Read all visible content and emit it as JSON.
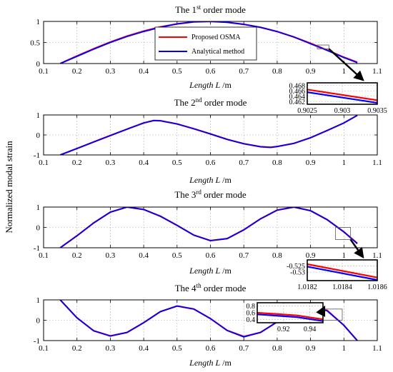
{
  "figure": {
    "ylabel": "Normalized modal strain"
  },
  "legend": {
    "items": [
      {
        "name": "Proposed OSMA",
        "color": "#ff0000"
      },
      {
        "name": "Analytical method",
        "color": "#0000ff"
      }
    ]
  },
  "chart_data": [
    {
      "type": "line",
      "title_main": "The 1",
      "title_sup": "st",
      "title_rest": " order mode",
      "xlabel_italic": "Length L",
      "xlabel_unit": " /m",
      "xlim": [
        0.1,
        1.1
      ],
      "ylim": [
        0,
        1
      ],
      "xticks": [
        "0.1",
        "0.2",
        "0.3",
        "0.4",
        "0.5",
        "0.6",
        "0.7",
        "0.8",
        "0.9",
        "1",
        "1.1"
      ],
      "yticks": [
        "0",
        "0.5",
        "1"
      ],
      "series": [
        {
          "name": "Proposed OSMA",
          "color": "#ff0000",
          "x": [
            0.15,
            0.2,
            0.25,
            0.3,
            0.35,
            0.4,
            0.45,
            0.5,
            0.55,
            0.6,
            0.65,
            0.7,
            0.75,
            0.8,
            0.85,
            0.9,
            0.95,
            1.0,
            1.04
          ],
          "y": [
            0.0,
            0.18,
            0.35,
            0.51,
            0.65,
            0.77,
            0.87,
            0.94,
            0.99,
            1.0,
            0.98,
            0.93,
            0.86,
            0.76,
            0.63,
            0.48,
            0.32,
            0.15,
            0.03
          ]
        },
        {
          "name": "Analytical method",
          "color": "#0000ff",
          "x": [
            0.15,
            0.2,
            0.25,
            0.3,
            0.35,
            0.4,
            0.45,
            0.5,
            0.55,
            0.6,
            0.65,
            0.7,
            0.75,
            0.8,
            0.85,
            0.9,
            0.95,
            1.0,
            1.04
          ],
          "y": [
            0.0,
            0.17,
            0.34,
            0.5,
            0.64,
            0.76,
            0.86,
            0.94,
            0.99,
            1.0,
            0.98,
            0.93,
            0.86,
            0.76,
            0.63,
            0.47,
            0.31,
            0.14,
            0.02
          ]
        }
      ],
      "zoom_box": {
        "xlim": [
          0.92,
          0.955
        ],
        "ylim": [
          0.35,
          0.44
        ]
      },
      "inset": {
        "xlim": [
          0.9025,
          0.9035
        ],
        "ylim": [
          0.461,
          0.469
        ],
        "xticks": [
          "0.9025",
          "0.903",
          "0.9035"
        ],
        "yticks": [
          "0.468",
          "0.466",
          "0.464",
          "0.462"
        ],
        "series": [
          {
            "color": "#ff0000",
            "x": [
              0.9025,
              0.9035
            ],
            "y": [
              0.4665,
              0.4625
            ]
          },
          {
            "color": "#0000ff",
            "x": [
              0.9025,
              0.9035
            ],
            "y": [
              0.4655,
              0.4615
            ]
          }
        ]
      }
    },
    {
      "type": "line",
      "title_main": "The 2",
      "title_sup": "nd",
      "title_rest": " order mode",
      "xlabel_italic": "Length L",
      "xlabel_unit": " /m",
      "xlim": [
        0.1,
        1.1
      ],
      "ylim": [
        -1,
        1
      ],
      "xticks": [
        "0.1",
        "0.2",
        "0.3",
        "0.4",
        "0.5",
        "0.6",
        "0.7",
        "0.8",
        "0.9",
        "1",
        "1.1"
      ],
      "yticks": [
        "-1",
        "0",
        "1"
      ],
      "series": [
        {
          "name": "Proposed OSMA",
          "color": "#ff0000",
          "x": [
            0.15,
            0.2,
            0.25,
            0.3,
            0.35,
            0.4,
            0.43,
            0.45,
            0.5,
            0.55,
            0.6,
            0.65,
            0.7,
            0.75,
            0.78,
            0.8,
            0.85,
            0.9,
            0.95,
            1.0,
            1.04
          ],
          "y": [
            -1.0,
            -0.68,
            -0.35,
            -0.03,
            0.29,
            0.6,
            0.72,
            0.71,
            0.55,
            0.31,
            0.05,
            -0.22,
            -0.44,
            -0.59,
            -0.62,
            -0.58,
            -0.42,
            -0.14,
            0.22,
            0.6,
            0.98
          ]
        },
        {
          "name": "Analytical method",
          "color": "#0000ff",
          "x": [
            0.15,
            0.2,
            0.25,
            0.3,
            0.35,
            0.4,
            0.43,
            0.45,
            0.5,
            0.55,
            0.6,
            0.65,
            0.7,
            0.75,
            0.78,
            0.8,
            0.85,
            0.9,
            0.95,
            1.0,
            1.04
          ],
          "y": [
            -1.0,
            -0.68,
            -0.35,
            -0.03,
            0.29,
            0.6,
            0.72,
            0.71,
            0.55,
            0.31,
            0.05,
            -0.22,
            -0.44,
            -0.59,
            -0.62,
            -0.58,
            -0.42,
            -0.14,
            0.22,
            0.6,
            0.98
          ]
        }
      ]
    },
    {
      "type": "line",
      "title_main": "The 3",
      "title_sup": "rd",
      "title_rest": " order mode",
      "xlabel_italic": "Length L",
      "xlabel_unit": " /m",
      "xlim": [
        0.1,
        1.1
      ],
      "ylim": [
        -1,
        1
      ],
      "xticks": [
        "0.1",
        "0.2",
        "0.3",
        "0.4",
        "0.5",
        "0.6",
        "0.7",
        "0.8",
        "0.9",
        "1",
        "1.1"
      ],
      "yticks": [
        "-1",
        "0",
        "1"
      ],
      "series": [
        {
          "name": "Proposed OSMA",
          "color": "#ff0000",
          "x": [
            0.15,
            0.2,
            0.25,
            0.3,
            0.35,
            0.4,
            0.45,
            0.5,
            0.55,
            0.6,
            0.65,
            0.7,
            0.75,
            0.8,
            0.85,
            0.9,
            0.95,
            1.0,
            1.04
          ],
          "y": [
            -1.0,
            -0.41,
            0.22,
            0.75,
            1.0,
            0.88,
            0.55,
            0.1,
            -0.38,
            -0.65,
            -0.55,
            -0.12,
            0.42,
            0.85,
            1.0,
            0.82,
            0.38,
            -0.22,
            -0.78
          ]
        },
        {
          "name": "Analytical method",
          "color": "#0000ff",
          "x": [
            0.15,
            0.2,
            0.25,
            0.3,
            0.35,
            0.4,
            0.45,
            0.5,
            0.55,
            0.6,
            0.65,
            0.7,
            0.75,
            0.8,
            0.85,
            0.9,
            0.95,
            1.0,
            1.04
          ],
          "y": [
            -1.0,
            -0.41,
            0.22,
            0.75,
            1.0,
            0.88,
            0.55,
            0.1,
            -0.38,
            -0.65,
            -0.55,
            -0.12,
            0.42,
            0.85,
            1.0,
            0.82,
            0.38,
            -0.22,
            -0.8
          ]
        }
      ],
      "zoom_box": {
        "xlim": [
          0.975,
          1.02
        ],
        "ylim": [
          -0.6,
          0
        ]
      },
      "inset": {
        "xlim": [
          1.0182,
          1.0186
        ],
        "ylim": [
          -0.537,
          -0.52
        ],
        "xticks": [
          "1.0182",
          "1.0184",
          "1.0186"
        ],
        "yticks": [
          "-0.525",
          "-0.53"
        ],
        "series": [
          {
            "color": "#ff0000",
            "x": [
              1.0182,
              1.0186
            ],
            "y": [
              -0.5235,
              -0.5345
            ]
          },
          {
            "color": "#0000ff",
            "x": [
              1.0182,
              1.0186
            ],
            "y": [
              -0.5255,
              -0.5365
            ]
          }
        ]
      }
    },
    {
      "type": "line",
      "title_main": "The 4",
      "title_sup": "th",
      "title_rest": " order mode",
      "xlabel_italic": "Length L",
      "xlabel_unit": " /m",
      "xlim": [
        0.1,
        1.1
      ],
      "ylim": [
        -1,
        1
      ],
      "xticks": [
        "0.1",
        "0.2",
        "0.3",
        "0.4",
        "0.5",
        "0.6",
        "0.7",
        "0.8",
        "0.9",
        "1",
        "1.1"
      ],
      "yticks": [
        "-1",
        "0",
        "1"
      ],
      "series": [
        {
          "name": "Proposed OSMA",
          "color": "#ff0000",
          "x": [
            0.15,
            0.2,
            0.25,
            0.3,
            0.35,
            0.4,
            0.45,
            0.5,
            0.55,
            0.6,
            0.65,
            0.7,
            0.75,
            0.8,
            0.85,
            0.9,
            0.95,
            1.0,
            1.04
          ],
          "y": [
            1.0,
            0.12,
            -0.52,
            -0.77,
            -0.6,
            -0.12,
            0.42,
            0.7,
            0.55,
            0.08,
            -0.5,
            -0.8,
            -0.6,
            -0.08,
            0.45,
            0.67,
            0.48,
            -0.25,
            -1.0
          ]
        },
        {
          "name": "Analytical method",
          "color": "#0000ff",
          "x": [
            0.15,
            0.2,
            0.25,
            0.3,
            0.35,
            0.4,
            0.45,
            0.5,
            0.55,
            0.6,
            0.65,
            0.7,
            0.75,
            0.8,
            0.85,
            0.9,
            0.95,
            1.0,
            1.04
          ],
          "y": [
            1.0,
            0.12,
            -0.52,
            -0.78,
            -0.6,
            -0.12,
            0.42,
            0.7,
            0.55,
            0.08,
            -0.5,
            -0.82,
            -0.6,
            -0.08,
            0.45,
            0.65,
            0.46,
            -0.25,
            -1.0
          ]
        }
      ],
      "zoom_box": {
        "xlim": [
          0.93,
          0.995
        ],
        "ylim": [
          0.0,
          0.55
        ]
      },
      "inset": {
        "xlim": [
          0.9,
          0.95
        ],
        "ylim": [
          0.3,
          0.9
        ],
        "xticks": [
          "0.92",
          "0.94"
        ],
        "yticks": [
          "0.8",
          "0.6",
          "0.4"
        ],
        "series": [
          {
            "color": "#ff0000",
            "x": [
              0.9,
              0.93,
              0.95
            ],
            "y": [
              0.6,
              0.52,
              0.4
            ]
          },
          {
            "color": "#0000ff",
            "x": [
              0.9,
              0.93,
              0.95
            ],
            "y": [
              0.55,
              0.47,
              0.35
            ]
          }
        ]
      }
    }
  ]
}
